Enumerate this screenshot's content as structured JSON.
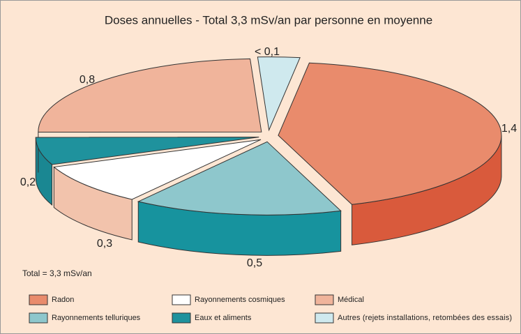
{
  "chart_data": {
    "type": "pie3d",
    "title": "Doses annuelles -  Total 3,3 mSv/an par personne en moyenne",
    "annotation": "Total = 3,3 mSv/an",
    "categories": [
      "Radon",
      "Rayonnements telluriques",
      "Rayonnements cosmiques",
      "Eaux et aliments",
      "Médical",
      "Autres (rejets installations, retombées des essais)"
    ],
    "values": [
      1.4,
      0.5,
      0.3,
      0.2,
      0.8,
      0.1
    ],
    "value_labels": [
      "1,4",
      "0,5",
      "0,3",
      "0,2",
      "0,8",
      "< 0,1"
    ],
    "colors": [
      "#e98b6c",
      "#8ec7cc",
      "#ffffff",
      "#1f929d",
      "#f0b49b",
      "#cfe9ee"
    ],
    "edge_colors": [
      "#d95a3c",
      "#17939e",
      "#f2c3ac",
      "#1a8792",
      "#e9a185",
      "#a9d6dd"
    ]
  }
}
